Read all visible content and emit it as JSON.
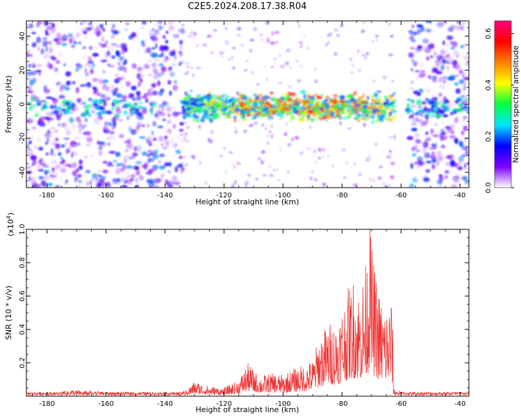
{
  "title": "C2E5.2024.208.17.38.R04",
  "chart_data": [
    {
      "type": "heatmap",
      "xlabel": "Height of straight line (km)",
      "ylabel": "Frequency (Hz)",
      "xlim": [
        -187,
        -37
      ],
      "ylim": [
        -49,
        49
      ],
      "x_ticks": [
        -180,
        -160,
        -140,
        -120,
        -100,
        -80,
        -60,
        -40
      ],
      "y_ticks": [
        -40,
        -20,
        0,
        20,
        40
      ],
      "colorbar": {
        "label": "Normalized spectral amplitude",
        "range": [
          0.0,
          0.65
        ],
        "ticks": [
          0.0,
          0.2,
          0.4,
          0.6
        ],
        "colors": [
          "#ffffff",
          "#8000ff",
          "#0000ff",
          "#00e5ff",
          "#00ff40",
          "#ffff00",
          "#ff8000",
          "#ff0000",
          "#ff0080"
        ]
      },
      "regions": [
        {
          "x": [
            -187,
            -134
          ],
          "y": [
            -49,
            49
          ],
          "description": "broadband purple noise"
        },
        {
          "x": [
            -134,
            -62
          ],
          "y": [
            -8,
            8
          ],
          "description": "narrowband signal near 0 Hz",
          "peak": 0.6
        },
        {
          "x": [
            -57,
            -37
          ],
          "y": [
            -49,
            49
          ],
          "description": "broadband purple noise"
        }
      ]
    },
    {
      "type": "line",
      "xlabel": "Height of straight line (km)",
      "ylabel": "SNR (10 * v/v)",
      "yscale_label": "(x10",
      "yscale_exp": "4",
      "yscale_close": ")",
      "xlim": [
        -187,
        -37
      ],
      "ylim": [
        0,
        1.0
      ],
      "x_ticks": [
        -180,
        -160,
        -140,
        -120,
        -100,
        -80,
        -60,
        -40
      ],
      "y_ticks": [
        0.2,
        0.4,
        0.6,
        0.8,
        1.0
      ],
      "series_color": "#ee3333",
      "envelope": [
        [
          -187,
          0.02
        ],
        [
          -175,
          0.02
        ],
        [
          -172,
          0.04
        ],
        [
          -160,
          0.02
        ],
        [
          -140,
          0.02
        ],
        [
          -134,
          0.02
        ],
        [
          -130,
          0.09
        ],
        [
          -125,
          0.06
        ],
        [
          -120,
          0.05
        ],
        [
          -115,
          0.1
        ],
        [
          -112,
          0.2
        ],
        [
          -108,
          0.12
        ],
        [
          -104,
          0.14
        ],
        [
          -100,
          0.13
        ],
        [
          -96,
          0.17
        ],
        [
          -93,
          0.19
        ],
        [
          -90,
          0.22
        ],
        [
          -88,
          0.35
        ],
        [
          -86,
          0.41
        ],
        [
          -84,
          0.45
        ],
        [
          -82,
          0.45
        ],
        [
          -80,
          0.55
        ],
        [
          -78,
          0.65
        ],
        [
          -76,
          0.72
        ],
        [
          -74,
          0.65
        ],
        [
          -72,
          0.8
        ],
        [
          -70.5,
          1.0
        ],
        [
          -69,
          0.78
        ],
        [
          -67,
          0.6
        ],
        [
          -65,
          0.55
        ],
        [
          -63,
          0.6
        ],
        [
          -62.5,
          0.05
        ],
        [
          -60,
          0.02
        ],
        [
          -50,
          0.02
        ],
        [
          -37,
          0.02
        ]
      ],
      "peak": {
        "x": -70.5,
        "y": 1.0
      }
    }
  ]
}
